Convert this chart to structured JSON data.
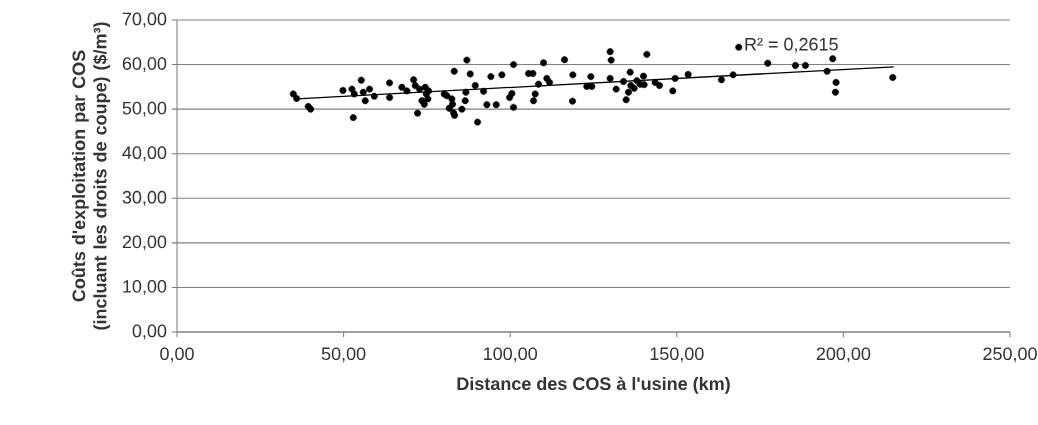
{
  "chart_data": {
    "type": "scatter",
    "xlabel": "Distance des COS à l'usine (km)",
    "ylabel": "Coûts d'exploitation par COS (incluant les droits de coupe) ($/m³)",
    "annotations": [
      "R² = 0,2615"
    ],
    "xlim": [
      0,
      250
    ],
    "ylim": [
      0,
      70
    ],
    "xticks": [
      {
        "value": 0,
        "label": "0,00"
      },
      {
        "value": 50,
        "label": "50,00"
      },
      {
        "value": 100,
        "label": "100,00"
      },
      {
        "value": 150,
        "label": "150,00"
      },
      {
        "value": 200,
        "label": "200,00"
      },
      {
        "value": 250,
        "label": "250,00"
      }
    ],
    "yticks": [
      {
        "value": 0,
        "label": "0,00"
      },
      {
        "value": 10,
        "label": "10,00"
      },
      {
        "value": 20,
        "label": "20,00"
      },
      {
        "value": 30,
        "label": "30,00"
      },
      {
        "value": 40,
        "label": "40,00"
      },
      {
        "value": 50,
        "label": "50,00"
      },
      {
        "value": 60,
        "label": "60,00"
      },
      {
        "value": 70,
        "label": "70,00"
      }
    ],
    "grid": "y",
    "series": [
      {
        "color": "#000000",
        "marker": "circle",
        "x": [
          34.9,
          35.9,
          39.4,
          40.1,
          49.8,
          52.9,
          52.5,
          53.2,
          55.3,
          55.9,
          56.5,
          57.8,
          59.2,
          63.8,
          63.8,
          67.5,
          69.0,
          71.0,
          71.5,
          72.2,
          72.8,
          73.5,
          74.5,
          74.8,
          75.3,
          74.2,
          75.5,
          80.2,
          81.0,
          81.7,
          82.5,
          82.7,
          83.0,
          83.3,
          83.2,
          87.0,
          86.7,
          86.5,
          85.5,
          88.0,
          89.5,
          90.2,
          92.0,
          93.0,
          94.2,
          95.8,
          97.5,
          101.0,
          101.0,
          99.8,
          100.5,
          105.5,
          106.8,
          107.0,
          107.5,
          108.5,
          110.0,
          111.0,
          111.8,
          116.3,
          118.8,
          118.7,
          123.0,
          124.2,
          124.5,
          130.0,
          130.3,
          130.0,
          131.8,
          134.0,
          134.8,
          135.5,
          136.0,
          136.2,
          137.2,
          138.0,
          139.0,
          140.0,
          140.2,
          141.0,
          143.5,
          144.8,
          148.8,
          149.5,
          153.4,
          163.4,
          166.9,
          168.6,
          177.3,
          185.6,
          188.6,
          195.1,
          196.8,
          197.8,
          197.6,
          214.8
        ],
        "values": [
          53.4,
          52.4,
          50.6,
          50.0,
          54.2,
          48.1,
          54.5,
          53.4,
          56.5,
          53.8,
          51.9,
          54.5,
          52.9,
          55.9,
          52.6,
          54.9,
          54.1,
          56.6,
          55.3,
          49.1,
          54.5,
          51.9,
          54.9,
          53.4,
          52.3,
          51.1,
          54.1,
          53.4,
          53.0,
          50.2,
          52.3,
          51.1,
          49.2,
          48.6,
          58.5,
          61.0,
          53.8,
          51.9,
          50.0,
          57.9,
          55.3,
          47.1,
          54.0,
          51.0,
          57.3,
          51.0,
          57.7,
          60.0,
          50.4,
          52.6,
          53.5,
          58.0,
          58.0,
          51.9,
          53.4,
          55.6,
          60.4,
          56.9,
          56.0,
          61.1,
          57.7,
          51.8,
          55.1,
          57.3,
          55.1,
          62.9,
          61.0,
          56.9,
          54.5,
          56.2,
          52.1,
          53.8,
          58.3,
          55.3,
          54.7,
          56.4,
          55.6,
          57.4,
          55.5,
          62.3,
          56.0,
          55.3,
          54.1,
          56.9,
          57.8,
          56.6,
          57.7,
          63.9,
          60.3,
          59.8,
          59.8,
          58.5,
          61.3,
          56.0,
          53.8,
          57.1
        ]
      },
      {
        "type": "line",
        "color": "#000000",
        "marker": "none",
        "x": [
          36,
          215.1
        ],
        "values": [
          52.3,
          59.5
        ]
      }
    ]
  }
}
